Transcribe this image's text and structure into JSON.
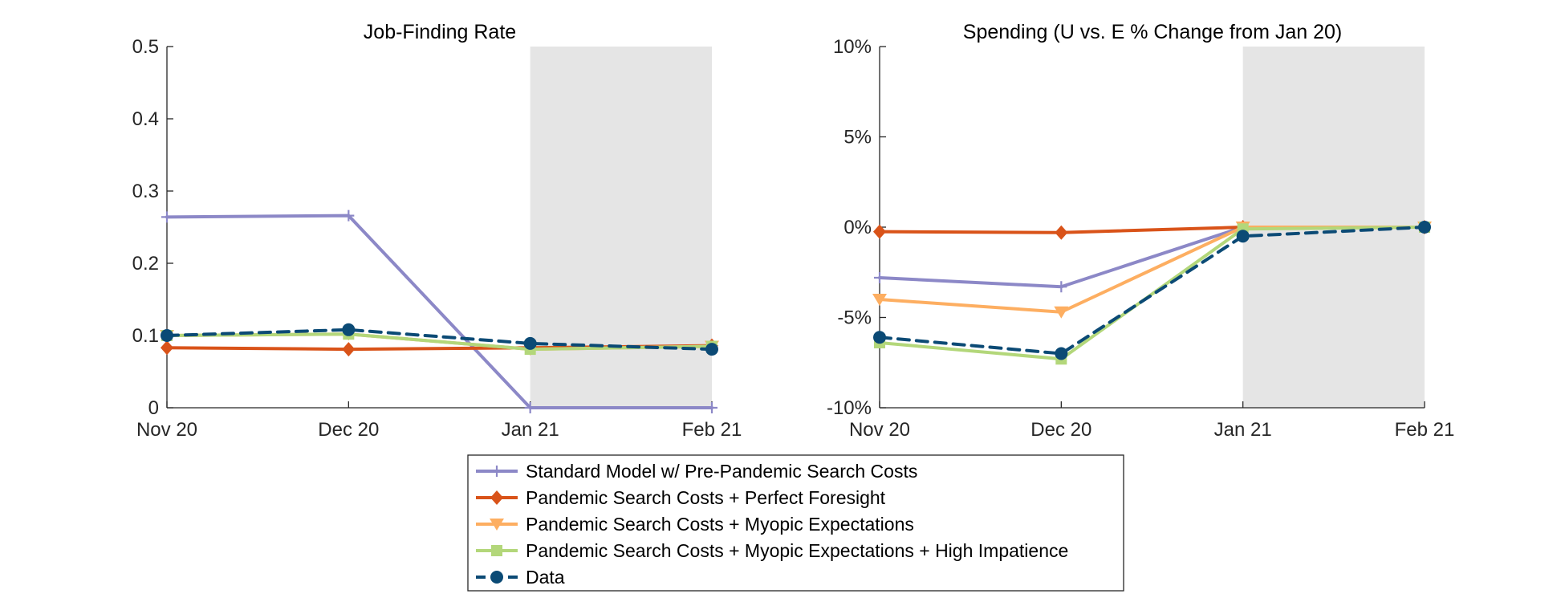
{
  "chart_data": [
    {
      "type": "line",
      "title": "Job-Finding Rate",
      "categories": [
        "Nov 20",
        "Dec 20",
        "Jan 21",
        "Feb 21"
      ],
      "ylim": [
        0,
        0.5
      ],
      "yticks": [
        0,
        0.1,
        0.2,
        0.3,
        0.4,
        0.5
      ],
      "ytick_labels": [
        "0",
        "0.1",
        "0.2",
        "0.3",
        "0.4",
        "0.5"
      ],
      "shaded_range": [
        "Jan 21",
        "Feb 21"
      ],
      "grid": false,
      "series": [
        {
          "key": "standard",
          "values": [
            0.264,
            0.266,
            0.0,
            0.0
          ]
        },
        {
          "key": "perfect",
          "values": [
            0.083,
            0.081,
            0.083,
            0.086
          ]
        },
        {
          "key": "myopic",
          "values": [
            0.1,
            0.102,
            0.081,
            0.085
          ]
        },
        {
          "key": "impatience",
          "values": [
            0.1,
            0.102,
            0.081,
            0.085
          ]
        },
        {
          "key": "data",
          "values": [
            0.1,
            0.108,
            0.089,
            0.081
          ]
        }
      ]
    },
    {
      "type": "line",
      "title": "Spending (U vs. E % Change from Jan 20)",
      "categories": [
        "Nov 20",
        "Dec 20",
        "Jan 21",
        "Feb 21"
      ],
      "ylim": [
        -10,
        10
      ],
      "yticks": [
        -10,
        -5,
        0,
        5,
        10
      ],
      "ytick_labels": [
        "-10%",
        "-5%",
        "0%",
        "5%",
        "10%"
      ],
      "shaded_range": [
        "Jan 21",
        "Feb 21"
      ],
      "grid": false,
      "series": [
        {
          "key": "standard",
          "values": [
            -2.8,
            -3.3,
            0.0,
            0.0
          ]
        },
        {
          "key": "perfect",
          "values": [
            -0.25,
            -0.3,
            0.0,
            0.0
          ]
        },
        {
          "key": "myopic",
          "values": [
            -4.0,
            -4.7,
            0.0,
            0.0
          ]
        },
        {
          "key": "impatience",
          "values": [
            -6.4,
            -7.3,
            -0.1,
            0.0
          ]
        },
        {
          "key": "data",
          "values": [
            -6.1,
            -7.0,
            -0.5,
            0.0
          ]
        }
      ]
    }
  ],
  "legend": {
    "placement": "bottom-center",
    "entries": [
      {
        "key": "standard",
        "label": "Standard Model w/ Pre-Pandemic Search Costs",
        "color": "#8c88c7",
        "marker": "plus",
        "dash": "solid"
      },
      {
        "key": "perfect",
        "label": "Pandemic Search Costs + Perfect Foresight",
        "color": "#d95319",
        "marker": "diamond",
        "dash": "solid"
      },
      {
        "key": "myopic",
        "label": "Pandemic Search Costs + Myopic Expectations",
        "color": "#fdae61",
        "marker": "triangle-down",
        "dash": "solid"
      },
      {
        "key": "impatience",
        "label": "Pandemic Search Costs + Myopic Expectations + High Impatience",
        "color": "#b3d77a",
        "marker": "square",
        "dash": "solid"
      },
      {
        "key": "data",
        "label": "Data",
        "color": "#0b4a75",
        "marker": "circle",
        "dash": "dashed"
      }
    ]
  }
}
